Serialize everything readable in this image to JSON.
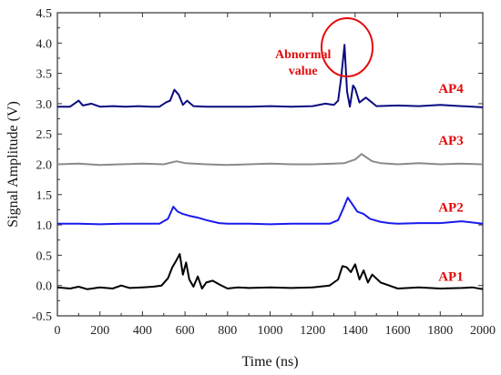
{
  "chart_data": {
    "type": "line",
    "title": "",
    "xlabel": "Time (ns)",
    "ylabel": "Signal Amplitude (V)",
    "xlim": [
      0,
      2000
    ],
    "ylim": [
      -0.5,
      4.5
    ],
    "xticks": [
      0,
      200,
      400,
      600,
      800,
      1000,
      1200,
      1400,
      1600,
      1800,
      2000
    ],
    "yticks": [
      -0.5,
      0.0,
      0.5,
      1.0,
      1.5,
      2.0,
      2.5,
      3.0,
      3.5,
      4.0,
      4.5
    ],
    "ytick_labels": [
      "-0.5",
      "0.0",
      "0.5",
      "1.0",
      "1.5",
      "2.0",
      "2.5",
      "3.0",
      "3.5",
      "4.0",
      "4.5"
    ],
    "grid": false,
    "series": [
      {
        "name": "AP4",
        "color": "#0b0b80",
        "x": [
          0,
          60,
          100,
          120,
          160,
          200,
          260,
          320,
          380,
          440,
          480,
          510,
          530,
          550,
          570,
          590,
          610,
          640,
          700,
          800,
          900,
          1000,
          1100,
          1200,
          1260,
          1300,
          1320,
          1335,
          1350,
          1362,
          1375,
          1390,
          1400,
          1420,
          1450,
          1500,
          1600,
          1700,
          1800,
          1900,
          2000
        ],
        "y": [
          2.95,
          2.95,
          3.05,
          2.97,
          3.0,
          2.95,
          2.96,
          2.95,
          2.96,
          2.95,
          2.95,
          3.02,
          3.05,
          3.23,
          3.15,
          2.98,
          3.05,
          2.96,
          2.95,
          2.95,
          2.95,
          2.96,
          2.95,
          2.96,
          3.0,
          2.98,
          3.05,
          3.45,
          3.97,
          3.2,
          2.95,
          3.3,
          3.25,
          3.02,
          3.1,
          2.96,
          2.97,
          2.96,
          2.98,
          2.96,
          2.94
        ]
      },
      {
        "name": "AP3",
        "color": "#8a8a8a",
        "x": [
          0,
          100,
          200,
          300,
          400,
          500,
          560,
          600,
          700,
          800,
          900,
          1000,
          1100,
          1200,
          1300,
          1350,
          1400,
          1430,
          1450,
          1480,
          1520,
          1600,
          1700,
          1800,
          1900,
          2000
        ],
        "y": [
          2.0,
          2.01,
          1.99,
          2.0,
          2.01,
          2.0,
          2.05,
          2.02,
          2.0,
          1.99,
          2.0,
          2.01,
          2.0,
          2.0,
          2.01,
          2.02,
          2.08,
          2.17,
          2.12,
          2.05,
          2.02,
          2.0,
          2.02,
          2.0,
          2.01,
          2.0
        ]
      },
      {
        "name": "AP2",
        "color": "#1a1aee",
        "x": [
          0,
          100,
          200,
          300,
          400,
          480,
          520,
          545,
          565,
          590,
          620,
          660,
          700,
          760,
          800,
          900,
          1000,
          1100,
          1200,
          1280,
          1320,
          1345,
          1365,
          1385,
          1410,
          1440,
          1470,
          1520,
          1560,
          1600,
          1700,
          1800,
          1900,
          2000
        ],
        "y": [
          1.02,
          1.02,
          1.01,
          1.02,
          1.02,
          1.02,
          1.1,
          1.3,
          1.22,
          1.18,
          1.15,
          1.12,
          1.08,
          1.03,
          1.02,
          1.02,
          1.01,
          1.02,
          1.02,
          1.02,
          1.08,
          1.28,
          1.45,
          1.35,
          1.22,
          1.18,
          1.1,
          1.05,
          1.03,
          1.02,
          1.03,
          1.03,
          1.06,
          1.02
        ]
      },
      {
        "name": "AP1",
        "color": "#000000",
        "x": [
          0,
          60,
          100,
          140,
          200,
          260,
          300,
          340,
          400,
          450,
          490,
          520,
          540,
          560,
          575,
          590,
          605,
          620,
          640,
          660,
          680,
          700,
          730,
          760,
          800,
          850,
          900,
          1000,
          1100,
          1200,
          1280,
          1320,
          1340,
          1360,
          1380,
          1400,
          1420,
          1440,
          1460,
          1480,
          1520,
          1560,
          1600,
          1700,
          1800,
          1900,
          1950,
          2000
        ],
        "y": [
          -0.03,
          -0.05,
          -0.02,
          -0.06,
          -0.03,
          -0.05,
          0.0,
          -0.04,
          -0.03,
          -0.02,
          0.0,
          0.12,
          0.3,
          0.42,
          0.52,
          0.18,
          0.38,
          0.1,
          -0.02,
          0.15,
          -0.05,
          0.05,
          0.08,
          0.02,
          -0.05,
          -0.03,
          -0.04,
          -0.03,
          -0.04,
          -0.03,
          0.0,
          0.1,
          0.32,
          0.3,
          0.22,
          0.35,
          0.1,
          0.25,
          0.05,
          0.18,
          0.05,
          0.0,
          -0.05,
          -0.03,
          -0.05,
          -0.04,
          -0.03,
          -0.06
        ]
      }
    ],
    "series_labels": [
      {
        "text": "AP4",
        "color": "#e30b0b",
        "x": 1850,
        "y": 3.18
      },
      {
        "text": "AP3",
        "color": "#e30b0b",
        "x": 1850,
        "y": 2.32
      },
      {
        "text": "AP2",
        "color": "#e30b0b",
        "x": 1850,
        "y": 1.22
      },
      {
        "text": "AP1",
        "color": "#e30b0b",
        "x": 1850,
        "y": 0.08
      }
    ],
    "annotation": {
      "lines": [
        "Abnormal",
        "value"
      ],
      "color": "#e30b0b",
      "circle_center": [
        1362,
        3.93
      ],
      "circle_radius_x": 120,
      "circle_radius_y": 0.48,
      "text_anchor_x": 1155,
      "text_anchor_y": 3.75
    }
  }
}
